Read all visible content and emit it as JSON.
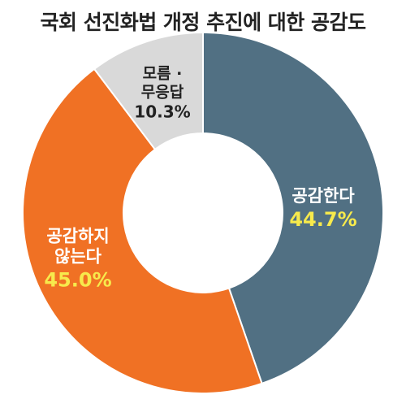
{
  "chart_data": {
    "type": "pie",
    "title": "국회 선진화법 개정 추진에 대한 공감도",
    "slices": [
      {
        "label_lines": [
          "공감한다"
        ],
        "value": 44.7,
        "value_label": "44.7%",
        "color": "#517083",
        "label_color": "#ffffff",
        "value_color": "#f7ea4c"
      },
      {
        "label_lines": [
          "공감하지",
          "않는다"
        ],
        "value": 45.0,
        "value_label": "45.0%",
        "color": "#f07124",
        "label_color": "#ffffff",
        "value_color": "#f7ea4c"
      },
      {
        "label_lines": [
          "모름 ·",
          "무응답"
        ],
        "value": 10.3,
        "value_label": "10.3%",
        "color": "#d9d9d9",
        "label_color": "#222222",
        "value_color": "#222222"
      }
    ],
    "donut": true,
    "legend": "none"
  }
}
